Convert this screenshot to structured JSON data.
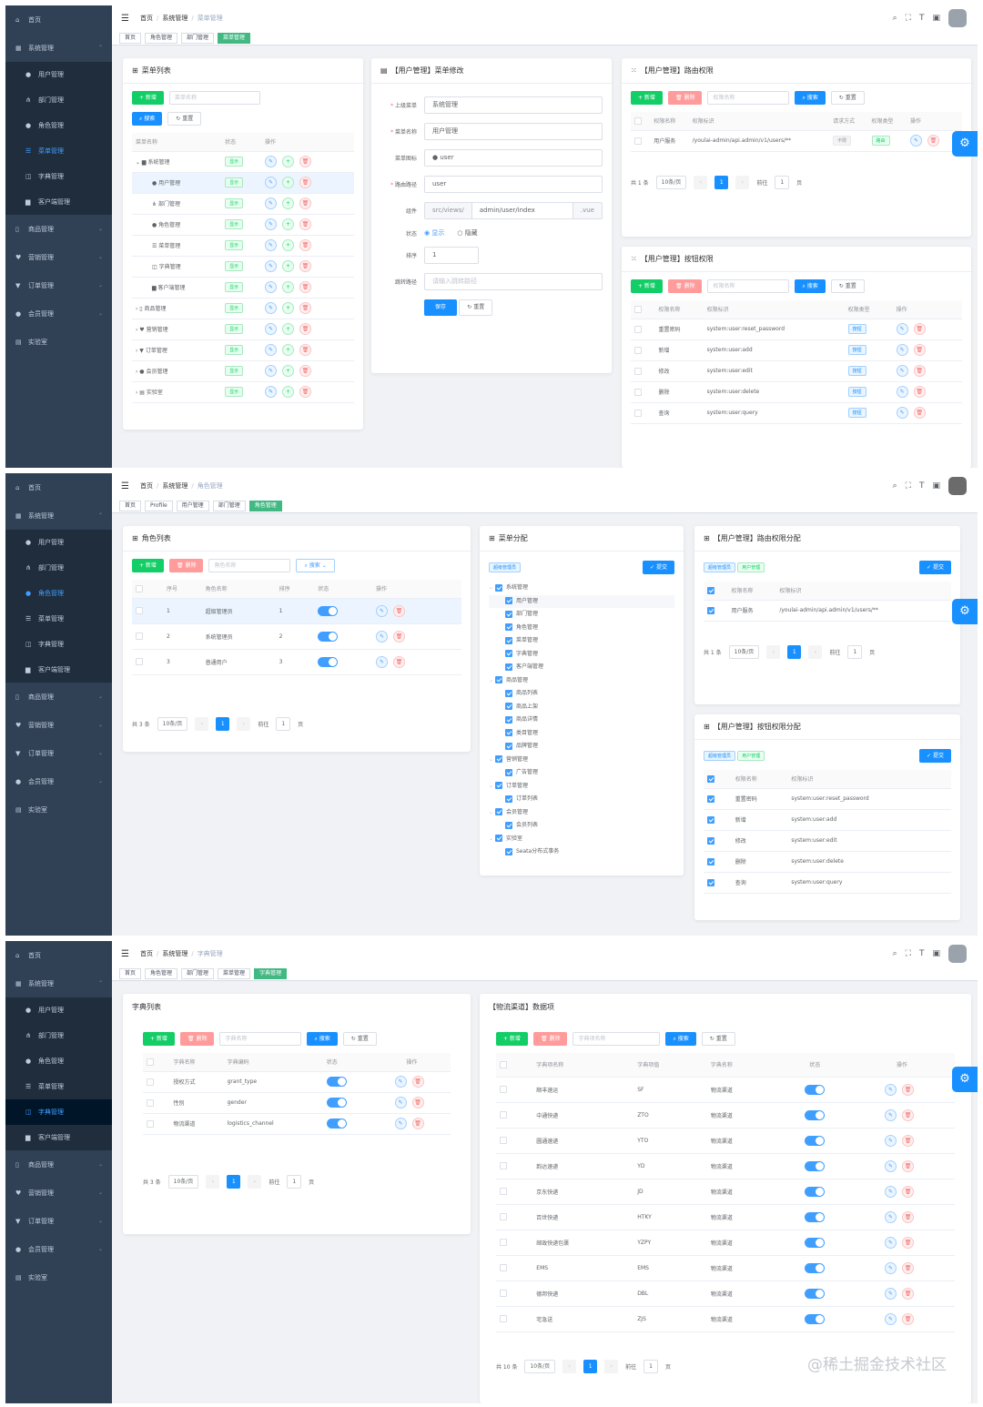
{
  "sidebar": {
    "home": "首页",
    "system": "系统管理",
    "sub_items": [
      "用户管理",
      "部门管理",
      "角色管理",
      "菜单管理",
      "字典管理",
      "客户端管理"
    ],
    "groups": [
      "商品管理",
      "营销管理",
      "订单管理",
      "会员管理",
      "实验室"
    ]
  },
  "navbar": {
    "home": "首页",
    "system": "系统管理",
    "crumb1": "菜单管理",
    "crumb2": "角色管理",
    "crumb3": "字典管理"
  },
  "tags1": [
    "首页",
    "角色管理",
    "部门管理",
    "菜单管理"
  ],
  "tags2": [
    "首页",
    "Profile",
    "用户管理",
    "部门管理",
    "角色管理"
  ],
  "tags3": [
    "首页",
    "角色管理",
    "部门管理",
    "菜单管理",
    "字典管理"
  ],
  "common": {
    "add": "+ 新增",
    "del": "删除",
    "search": "搜索",
    "reset": "重置",
    "submit": "提交",
    "show": "显示",
    "hide": "隐藏",
    "save": "保存",
    "per_page": "10条/页",
    "goto": "前往",
    "page": "页",
    "page1": "1"
  },
  "s1": {
    "menu_list": {
      "title": "菜单列表",
      "placeholder": "菜单名称",
      "cols": [
        "菜单名称",
        "状态",
        "操作"
      ],
      "rows": [
        "系统管理",
        "用户管理",
        "部门管理",
        "角色管理",
        "菜单管理",
        "字典管理",
        "客户端管理",
        "商品管理",
        "营销管理",
        "订单管理",
        "会员管理",
        "实验室"
      ]
    },
    "menu_edit": {
      "title": "【用户管理】菜单修改",
      "labels": [
        "上级菜单",
        "菜单名称",
        "菜单图标",
        "路由路径",
        "组件",
        "状态",
        "排序",
        "跳转路径"
      ],
      "parent": "系统管理",
      "name": "用户管理",
      "icon": "user",
      "path": "user",
      "comp_prefix": "src/views/",
      "comp": "admin/user/index",
      "comp_suffix": ".vue",
      "sort": "1",
      "redirect_placeholder": "请输入跳转路径"
    },
    "route_perm": {
      "title": "【用户管理】路由权限",
      "placeholder": "权限名称",
      "cols": [
        "权限名称",
        "权限标识",
        "请求方式",
        "权限类型",
        "操作"
      ],
      "row": [
        "用户服务",
        "/youlai-admin/api.admin/v1/users/**",
        "不限",
        "路由"
      ],
      "total": "共 1 条"
    },
    "btn_perm": {
      "title": "【用户管理】按钮权限",
      "placeholder": "权限名称",
      "cols": [
        "权限名称",
        "权限标识",
        "权限类型",
        "操作"
      ],
      "rows": [
        [
          "重置密码",
          "system:user:reset_password"
        ],
        [
          "新增",
          "system:user:add"
        ],
        [
          "修改",
          "system:user:edit"
        ],
        [
          "删除",
          "system:user:delete"
        ],
        [
          "查询",
          "system:user:query"
        ]
      ],
      "type": "按钮"
    }
  },
  "s2": {
    "role_list": {
      "title": "角色列表",
      "placeholder": "角色名称",
      "cols": [
        "序号",
        "角色名称",
        "排序",
        "状态",
        "操作"
      ],
      "rows": [
        [
          "1",
          "超级管理员",
          "1"
        ],
        [
          "2",
          "系统管理员",
          "2"
        ],
        [
          "3",
          "普通用户",
          "3"
        ]
      ],
      "total": "共 3 条"
    },
    "menu_assign": {
      "title": "菜单分配",
      "role_tag": "超级管理员",
      "tree": [
        [
          "系统管理",
          0
        ],
        [
          "用户管理",
          1
        ],
        [
          "部门管理",
          1
        ],
        [
          "角色管理",
          1
        ],
        [
          "菜单管理",
          1
        ],
        [
          "字典管理",
          1
        ],
        [
          "客户端管理",
          1
        ],
        [
          "商品管理",
          0
        ],
        [
          "商品列表",
          1
        ],
        [
          "商品上架",
          1
        ],
        [
          "商品详情",
          1
        ],
        [
          "类目管理",
          1
        ],
        [
          "品牌管理",
          1
        ],
        [
          "营销管理",
          0
        ],
        [
          "广告管理",
          1
        ],
        [
          "订单管理",
          0
        ],
        [
          "订单列表",
          1
        ],
        [
          "会员管理",
          0
        ],
        [
          "会员列表",
          1
        ],
        [
          "实验室",
          0
        ],
        [
          "Seata分布式事务",
          1
        ]
      ]
    },
    "route_assign": {
      "title": "【用户管理】路由权限分配",
      "role_tag": "超级管理员",
      "menu_tag": "用户管理",
      "cols": [
        "权限名称",
        "权限标识"
      ],
      "row": [
        "用户服务",
        "/youlai-admin/api.admin/v1/users/**"
      ],
      "total": "共 1 条"
    },
    "btn_assign": {
      "title": "【用户管理】按钮权限分配",
      "role_tag": "超级管理员",
      "menu_tag": "用户管理",
      "cols": [
        "权限名称",
        "权限标识"
      ],
      "rows": [
        [
          "重置密码",
          "system:user:reset_password"
        ],
        [
          "新增",
          "system:user:add"
        ],
        [
          "修改",
          "system:user:edit"
        ],
        [
          "删除",
          "system:user:delete"
        ],
        [
          "查询",
          "system:user:query"
        ]
      ]
    }
  },
  "s3": {
    "dict_list": {
      "title": "字典列表",
      "placeholder": "字典名称",
      "cols": [
        "字典名称",
        "字典编码",
        "状态",
        "操作"
      ],
      "rows": [
        [
          "授权方式",
          "grant_type"
        ],
        [
          "性别",
          "gender"
        ],
        [
          "物流渠道",
          "logistics_channel"
        ]
      ],
      "total": "共 3 条"
    },
    "dict_items": {
      "title": "【物流渠道】数据项",
      "placeholder": "字典项名称",
      "cols": [
        "字典项名称",
        "字典项值",
        "字典名称",
        "状态",
        "操作"
      ],
      "rows": [
        [
          "顺丰速运",
          "SF"
        ],
        [
          "中通快递",
          "ZTO"
        ],
        [
          "圆通速递",
          "YTO"
        ],
        [
          "韵达速递",
          "YD"
        ],
        [
          "京东快递",
          "JD"
        ],
        [
          "百世快递",
          "HTKY"
        ],
        [
          "邮政快递包裹",
          "YZPY"
        ],
        [
          "EMS",
          "EMS"
        ],
        [
          "德邦快递",
          "DBL"
        ],
        [
          "宅急送",
          "ZJS"
        ]
      ],
      "dict_name": "物流渠道",
      "total": "共 10 条"
    },
    "watermark": "@稀土掘金技术社区"
  }
}
